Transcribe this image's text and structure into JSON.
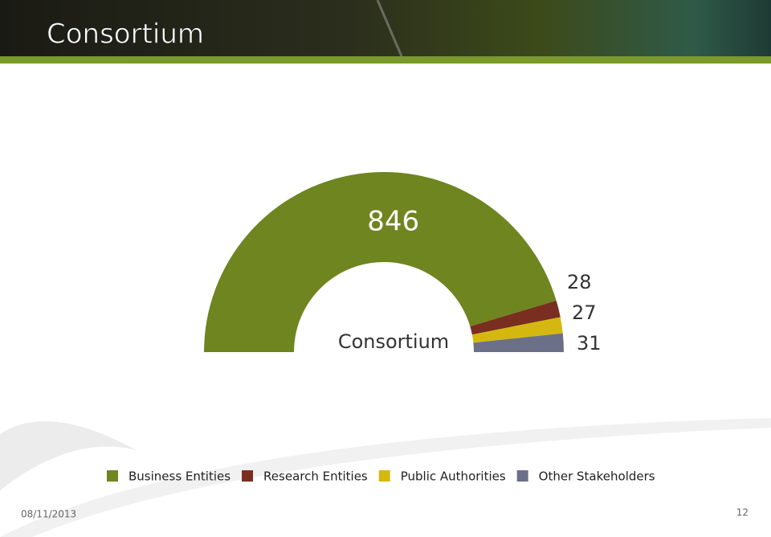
{
  "header": {
    "title": "Consortium"
  },
  "chart_data": {
    "type": "pie",
    "center_label": "Consortium",
    "categories": [
      "Business Entities",
      "Research Entities",
      "Public Authorities",
      "Other Stakeholders"
    ],
    "values": [
      846,
      28,
      27,
      31
    ],
    "colors": [
      "#6e8520",
      "#7a2e20",
      "#d4b810",
      "#6b7088"
    ]
  },
  "footer": {
    "date": "08/11/2013",
    "page": 12
  }
}
